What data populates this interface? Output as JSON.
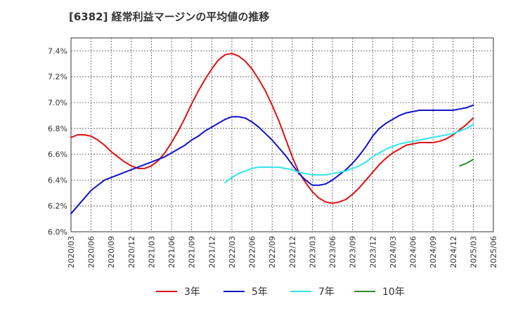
{
  "chart_data": {
    "type": "line",
    "title": "[6382]  経常利益マージンの平均値の推移",
    "xlabel": "",
    "ylabel": "",
    "ylim": [
      6.0,
      7.5
    ],
    "y_ticks": [
      "6.0%",
      "6.2%",
      "6.4%",
      "6.6%",
      "6.8%",
      "7.0%",
      "7.2%",
      "7.4%"
    ],
    "y_tick_values": [
      6.0,
      6.2,
      6.4,
      6.6,
      6.8,
      7.0,
      7.2,
      7.4
    ],
    "x_ticks": [
      "2020/03",
      "2020/06",
      "2020/09",
      "2020/12",
      "2021/03",
      "2021/06",
      "2021/09",
      "2021/12",
      "2022/03",
      "2022/06",
      "2022/09",
      "2022/12",
      "2023/03",
      "2023/06",
      "2023/09",
      "2023/12",
      "2024/03",
      "2024/06",
      "2024/09",
      "2024/12",
      "2025/03",
      "2025/06"
    ],
    "grid": true,
    "legend_position": "bottom",
    "series": [
      {
        "name": "3年",
        "color": "#dd1111",
        "start": "2020/03",
        "values": [
          6.73,
          6.75,
          6.75,
          6.74,
          6.71,
          6.67,
          6.62,
          6.58,
          6.54,
          6.51,
          6.49,
          6.49,
          6.51,
          6.55,
          6.61,
          6.69,
          6.78,
          6.88,
          6.99,
          7.09,
          7.18,
          7.26,
          7.33,
          7.37,
          7.38,
          7.36,
          7.32,
          7.26,
          7.18,
          7.09,
          6.98,
          6.86,
          6.72,
          6.58,
          6.46,
          6.38,
          6.31,
          6.26,
          6.23,
          6.22,
          6.23,
          6.25,
          6.29,
          6.34,
          6.4,
          6.46,
          6.52,
          6.57,
          6.61,
          6.64,
          6.67,
          6.68,
          6.69,
          6.69,
          6.69,
          6.7,
          6.72,
          6.75,
          6.79,
          6.83,
          6.88
        ]
      },
      {
        "name": "5年",
        "color": "#1111cc",
        "start": "2020/03",
        "values": [
          6.14,
          6.2,
          6.26,
          6.32,
          6.36,
          6.4,
          6.42,
          6.44,
          6.46,
          6.48,
          6.5,
          6.52,
          6.54,
          6.56,
          6.58,
          6.61,
          6.64,
          6.67,
          6.71,
          6.74,
          6.78,
          6.81,
          6.84,
          6.87,
          6.89,
          6.89,
          6.88,
          6.85,
          6.81,
          6.76,
          6.71,
          6.65,
          6.59,
          6.52,
          6.45,
          6.4,
          6.36,
          6.36,
          6.37,
          6.4,
          6.44,
          6.48,
          6.53,
          6.59,
          6.66,
          6.74,
          6.8,
          6.84,
          6.87,
          6.9,
          6.92,
          6.93,
          6.94,
          6.94,
          6.94,
          6.94,
          6.94,
          6.94,
          6.95,
          6.96,
          6.98
        ]
      },
      {
        "name": "7年",
        "color": "#33e5f0",
        "start": "2022/02",
        "values": [
          6.38,
          6.42,
          6.45,
          6.47,
          6.49,
          6.5,
          6.5,
          6.5,
          6.5,
          6.49,
          6.48,
          6.46,
          6.45,
          6.44,
          6.44,
          6.44,
          6.45,
          6.46,
          6.47,
          6.49,
          6.51,
          6.54,
          6.58,
          6.61,
          6.64,
          6.66,
          6.68,
          6.69,
          6.7,
          6.71,
          6.72,
          6.73,
          6.74,
          6.75,
          6.76,
          6.78,
          6.8,
          6.83
        ]
      },
      {
        "name": "10年",
        "color": "#2e8b2e",
        "start": "2025/01",
        "values": [
          6.51,
          6.53,
          6.56
        ]
      }
    ]
  }
}
